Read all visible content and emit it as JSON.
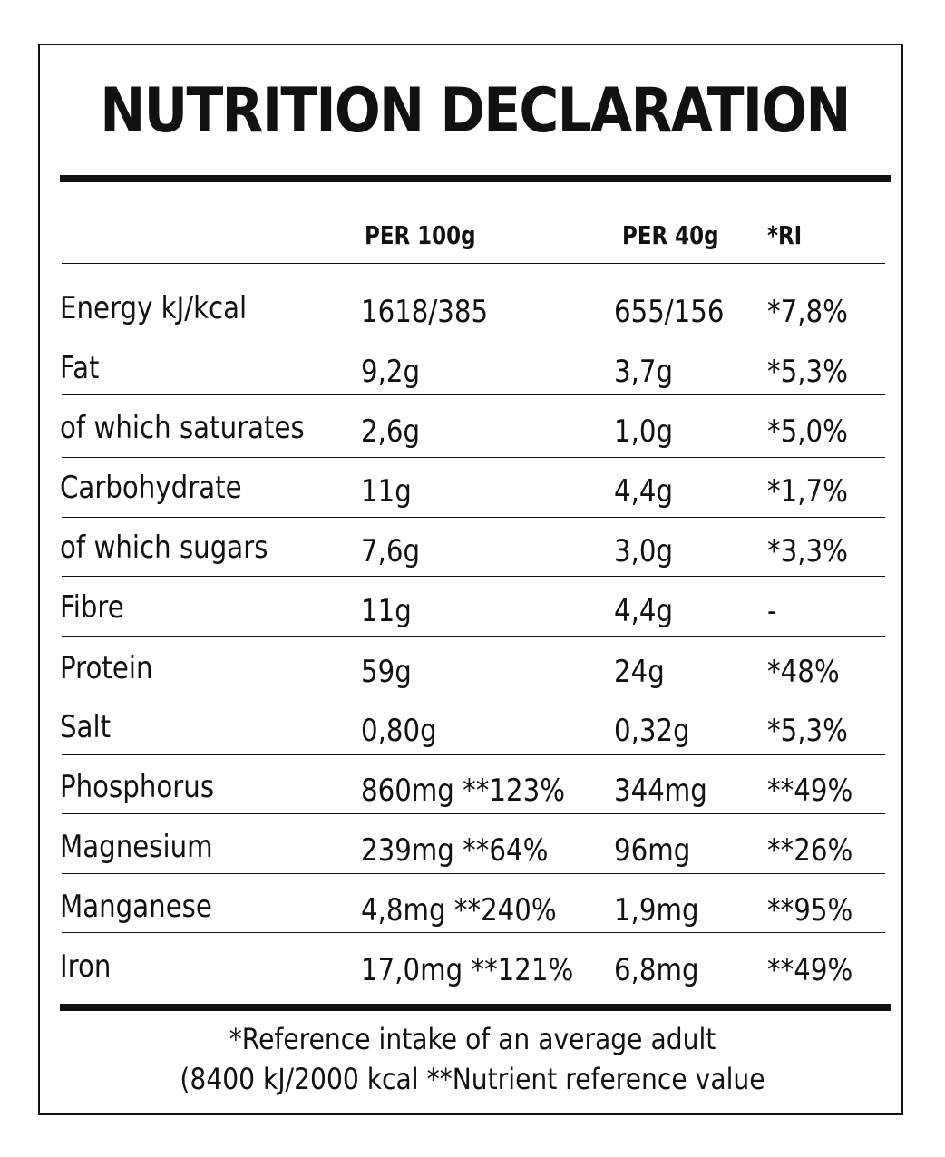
{
  "title": "NUTRITION DECLARATION",
  "header": {
    "col1": "PER 100g",
    "col2": "PER 40g",
    "col3": "*RI"
  },
  "rows": [
    {
      "name": "Energy kJ/kcal",
      "per100": "1618/385",
      "per40": "655/156",
      "ri": "*7,8%"
    },
    {
      "name": "Fat",
      "per100": "9,2g",
      "per40": "3,7g",
      "ri": "*5,3%"
    },
    {
      "name": "of which saturates",
      "per100": "2,6g",
      "per40": "1,0g",
      "ri": "*5,0%"
    },
    {
      "name": "Carbohydrate",
      "per100": "11g",
      "per40": "4,4g",
      "ri": "*1,7%"
    },
    {
      "name": "of which sugars",
      "per100": "7,6g",
      "per40": "3,0g",
      "ri": "*3,3%"
    },
    {
      "name": "Fibre",
      "per100": "11g",
      "per40": "4,4g",
      "ri": "-"
    },
    {
      "name": "Protein",
      "per100": "59g",
      "per40": "24g",
      "ri": "*48%"
    },
    {
      "name": "Salt",
      "per100": "0,80g",
      "per40": "0,32g",
      "ri": "*5,3%"
    },
    {
      "name": "Phosphorus",
      "per100": "860mg **123%",
      "per40": "344mg",
      "ri": "**49%"
    },
    {
      "name": "Magnesium",
      "per100": "239mg **64%",
      "per40": "96mg",
      "ri": "**26%"
    },
    {
      "name": "Manganese",
      "per100": "4,8mg **240%",
      "per40": "1,9mg",
      "ri": "**95%"
    },
    {
      "name": "Iron",
      "per100": "17,0mg **121%",
      "per40": "6,8mg",
      "ri": "**49%"
    }
  ],
  "footer": {
    "line1": "*Reference intake of an average adult",
    "line2": "(8400 kJ/2000 kcal **Nutrient reference value"
  }
}
